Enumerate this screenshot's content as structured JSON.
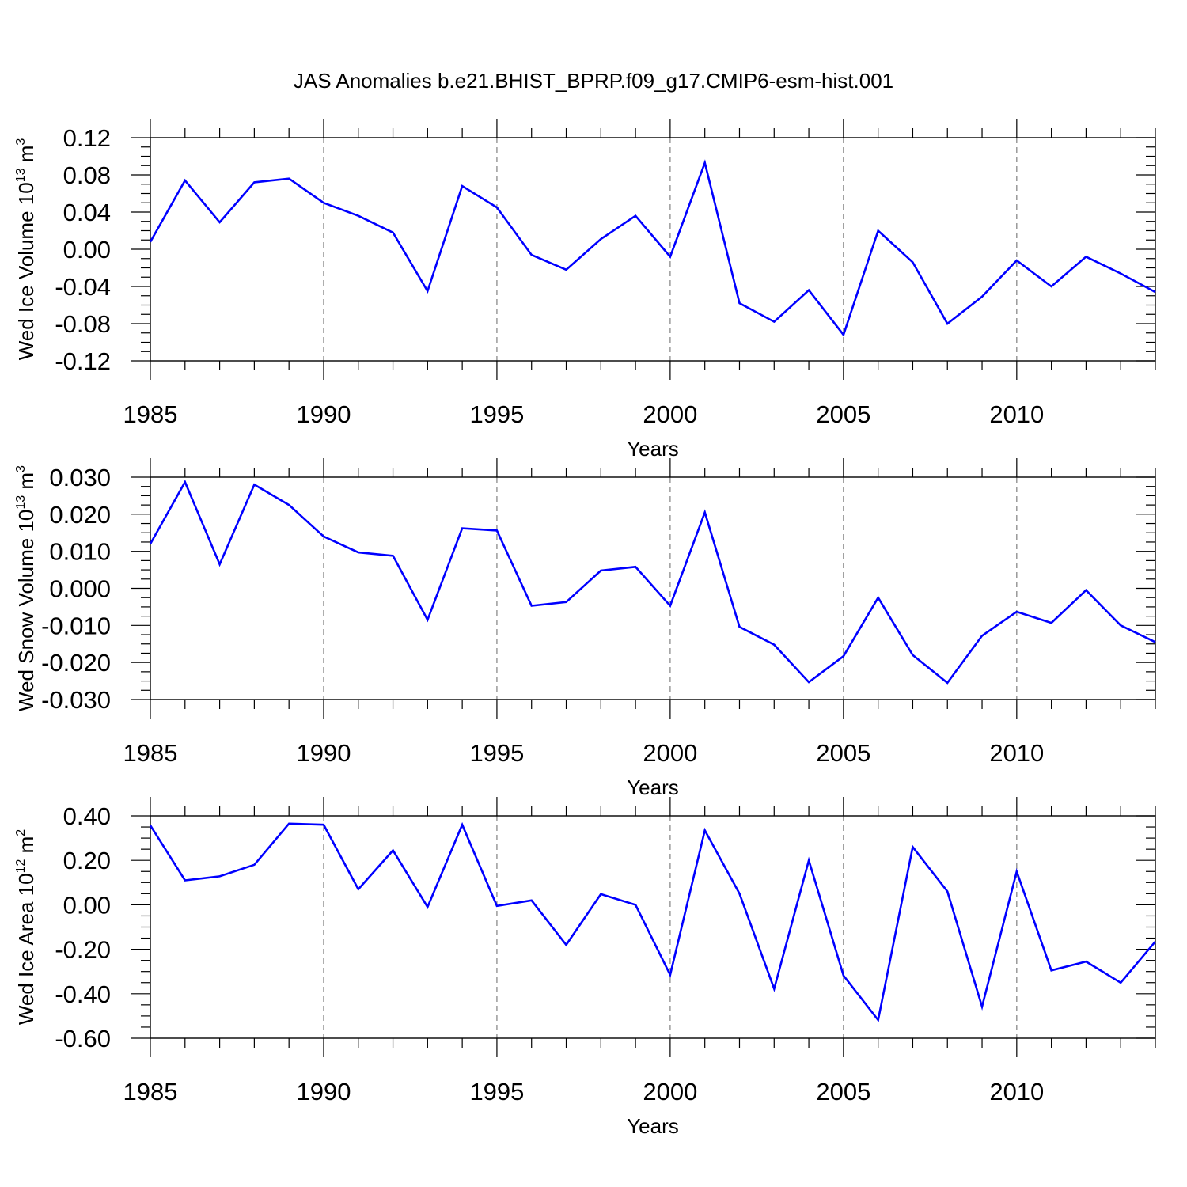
{
  "title": "JAS Anomalies b.e21.BHIST_BPRP.f09_g17.CMIP6-esm-hist.001",
  "colors": {
    "line": "#0000ff",
    "axis": "#000000",
    "grid": "#808080"
  },
  "chart_data": [
    {
      "type": "line",
      "title": "JAS Anomalies b.e21.BHIST_BPRP.f09_g17.CMIP6-esm-hist.001",
      "ylabel_main": "Wed Ice Volume 10",
      "ylabel_exp": "13",
      "ylabel_unit": "m",
      "ylabel_unit_exp": "3",
      "xlabel": "Years",
      "xlim": [
        1985,
        2014
      ],
      "ylim": [
        -0.12,
        0.12
      ],
      "x_ticks": [
        "1985",
        "1990",
        "1995",
        "2000",
        "2005",
        "2010"
      ],
      "y_ticks": [
        "0.12",
        "0.08",
        "0.04",
        "0.00",
        "-0.04",
        "-0.08",
        "-0.12"
      ],
      "grid_x": [
        1990,
        1995,
        2000,
        2005,
        2010
      ],
      "x": [
        1985,
        1986,
        1987,
        1988,
        1989,
        1990,
        1991,
        1992,
        1993,
        1994,
        1995,
        1996,
        1997,
        1998,
        1999,
        2000,
        2001,
        2002,
        2003,
        2004,
        2005,
        2006,
        2007,
        2008,
        2009,
        2010,
        2011,
        2012,
        2013,
        2014
      ],
      "values": [
        0.008,
        0.074,
        0.029,
        0.072,
        0.076,
        0.05,
        0.036,
        0.018,
        -0.045,
        0.068,
        0.045,
        -0.006,
        -0.022,
        0.011,
        0.036,
        -0.008,
        0.093,
        -0.058,
        -0.078,
        -0.044,
        -0.092,
        0.02,
        -0.014,
        -0.08,
        -0.051,
        -0.012,
        -0.04,
        -0.008,
        -0.026,
        -0.046
      ]
    },
    {
      "type": "line",
      "ylabel_main": "Wed Snow Volume 10",
      "ylabel_exp": "13",
      "ylabel_unit": "m",
      "ylabel_unit_exp": "3",
      "xlabel": "Years",
      "xlim": [
        1985,
        2014
      ],
      "ylim": [
        -0.03,
        0.03
      ],
      "x_ticks": [
        "1985",
        "1990",
        "1995",
        "2000",
        "2005",
        "2010"
      ],
      "y_ticks": [
        "0.030",
        "0.020",
        "0.010",
        "0.000",
        "-0.010",
        "-0.020",
        "-0.030"
      ],
      "grid_x": [
        1990,
        1995,
        2000,
        2005,
        2010
      ],
      "x": [
        1985,
        1986,
        1987,
        1988,
        1989,
        1990,
        1991,
        1992,
        1993,
        1994,
        1995,
        1996,
        1997,
        1998,
        1999,
        2000,
        2001,
        2002,
        2003,
        2004,
        2005,
        2006,
        2007,
        2008,
        2009,
        2010,
        2011,
        2012,
        2013,
        2014
      ],
      "values": [
        0.012,
        0.0287,
        0.0065,
        0.028,
        0.0225,
        0.014,
        0.0097,
        0.0088,
        -0.0085,
        0.0162,
        0.0156,
        -0.0047,
        -0.0037,
        0.0048,
        0.0058,
        -0.0047,
        0.0205,
        -0.0104,
        -0.0152,
        -0.0253,
        -0.0183,
        -0.0025,
        -0.018,
        -0.0255,
        -0.0128,
        -0.0063,
        -0.0093,
        -0.0005,
        -0.01,
        -0.0145
      ]
    },
    {
      "type": "line",
      "ylabel_main": "Wed Ice Area 10",
      "ylabel_exp": "12",
      "ylabel_unit": "m",
      "ylabel_unit_exp": "2",
      "xlabel": "Years",
      "xlim": [
        1985,
        2014
      ],
      "ylim": [
        -0.6,
        0.4
      ],
      "x_ticks": [
        "1985",
        "1990",
        "1995",
        "2000",
        "2005",
        "2010"
      ],
      "y_ticks": [
        "0.40",
        "0.20",
        "0.00",
        "-0.20",
        "-0.40",
        "-0.60"
      ],
      "grid_x": [
        1990,
        1995,
        2000,
        2005,
        2010
      ],
      "x": [
        1985,
        1986,
        1987,
        1988,
        1989,
        1990,
        1991,
        1992,
        1993,
        1994,
        1995,
        1996,
        1997,
        1998,
        1999,
        2000,
        2001,
        2002,
        2003,
        2004,
        2005,
        2006,
        2007,
        2008,
        2009,
        2010,
        2011,
        2012,
        2013,
        2014
      ],
      "values": [
        0.357,
        0.11,
        0.128,
        0.18,
        0.365,
        0.36,
        0.07,
        0.245,
        -0.01,
        0.36,
        -0.005,
        0.02,
        -0.18,
        0.048,
        0.0,
        -0.315,
        0.335,
        0.05,
        -0.378,
        0.2,
        -0.318,
        -0.518,
        0.26,
        0.06,
        -0.458,
        0.15,
        -0.295,
        -0.255,
        -0.35,
        -0.165
      ]
    }
  ]
}
